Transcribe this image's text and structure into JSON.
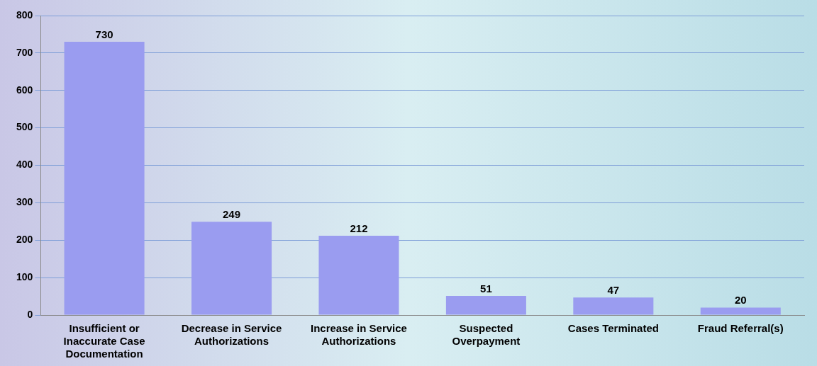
{
  "chart_data": {
    "type": "bar",
    "categories": [
      "Insufficient or Inaccurate Case Documentation",
      "Decrease in Service Authorizations",
      "Increase in Service Authorizations",
      "Suspected Overpayment",
      "Cases Terminated",
      "Fraud Referral(s)"
    ],
    "values": [
      730,
      249,
      212,
      51,
      47,
      20
    ],
    "color": "#9a9cf0",
    "ylim": [
      0,
      800
    ],
    "yticks": [
      0,
      100,
      200,
      300,
      400,
      500,
      600,
      700,
      800
    ],
    "grid": "y",
    "data_labels": true,
    "legend": false
  }
}
